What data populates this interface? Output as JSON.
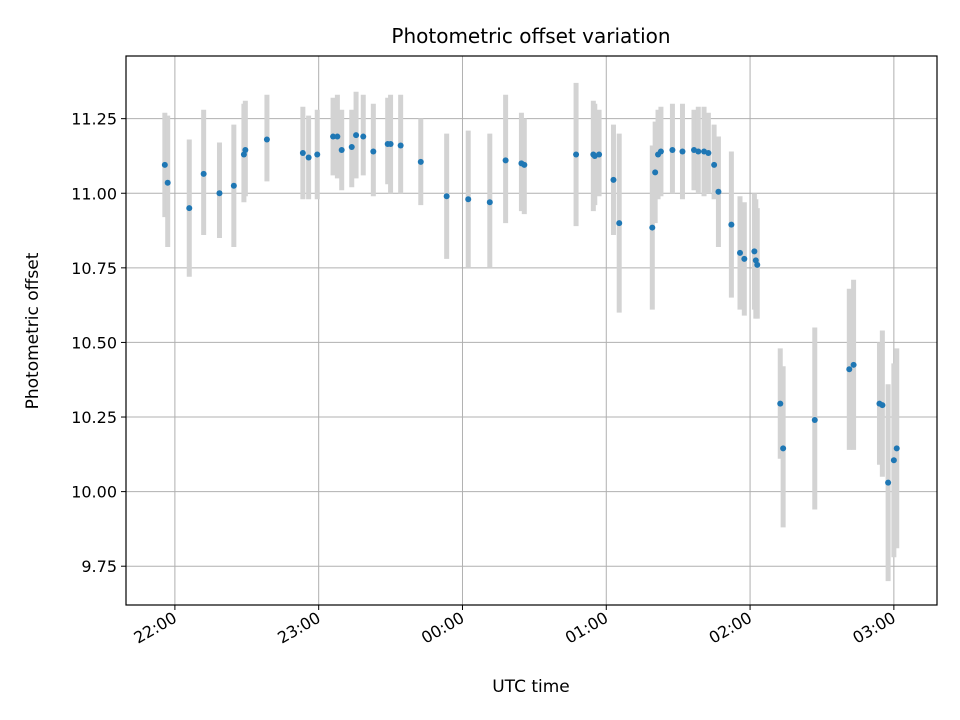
{
  "chart_data": {
    "type": "scatter",
    "title": "Photometric offset variation",
    "xlabel": "UTC time",
    "ylabel": "Photometric offset",
    "x_unit": "hours (UTC, relative to 00:00; negative = previous day)",
    "xlim": [
      -2.34,
      3.3
    ],
    "ylim": [
      9.62,
      11.46
    ],
    "x_ticks": [
      {
        "value": -2,
        "label": "22:00"
      },
      {
        "value": -1,
        "label": "23:00"
      },
      {
        "value": 0,
        "label": "00:00"
      },
      {
        "value": 1,
        "label": "01:00"
      },
      {
        "value": 2,
        "label": "02:00"
      },
      {
        "value": 3,
        "label": "03:00"
      }
    ],
    "y_ticks": [
      9.75,
      10.0,
      10.25,
      10.5,
      10.75,
      11.0,
      11.25
    ],
    "y_tick_labels": [
      "9.75",
      "10.00",
      "10.25",
      "10.50",
      "10.75",
      "11.00",
      "11.25"
    ],
    "grid": true,
    "colors": {
      "point": "#1f77b4",
      "errorbar": "#d3d3d3",
      "grid": "#b0b0b0"
    },
    "series": [
      {
        "points": [
          {
            "x": -2.07,
            "y": 11.095,
            "lo": 10.92,
            "hi": 11.27
          },
          {
            "x": -2.05,
            "y": 11.035,
            "lo": 10.82,
            "hi": 11.26
          },
          {
            "x": -1.9,
            "y": 10.95,
            "lo": 10.72,
            "hi": 11.18
          },
          {
            "x": -1.8,
            "y": 11.065,
            "lo": 10.86,
            "hi": 11.28
          },
          {
            "x": -1.69,
            "y": 11.0,
            "lo": 10.85,
            "hi": 11.17
          },
          {
            "x": -1.59,
            "y": 11.025,
            "lo": 10.82,
            "hi": 11.23
          },
          {
            "x": -1.52,
            "y": 11.13,
            "lo": 10.97,
            "hi": 11.3
          },
          {
            "x": -1.51,
            "y": 11.145,
            "lo": 10.99,
            "hi": 11.31
          },
          {
            "x": -1.36,
            "y": 11.18,
            "lo": 11.04,
            "hi": 11.33
          },
          {
            "x": -1.11,
            "y": 11.135,
            "lo": 10.98,
            "hi": 11.29
          },
          {
            "x": -1.07,
            "y": 11.12,
            "lo": 10.98,
            "hi": 11.26
          },
          {
            "x": -1.01,
            "y": 11.13,
            "lo": 10.98,
            "hi": 11.28
          },
          {
            "x": -0.9,
            "y": 11.19,
            "lo": 11.06,
            "hi": 11.32
          },
          {
            "x": -0.87,
            "y": 11.19,
            "lo": 11.05,
            "hi": 11.33
          },
          {
            "x": -0.84,
            "y": 11.145,
            "lo": 11.01,
            "hi": 11.28
          },
          {
            "x": -0.77,
            "y": 11.155,
            "lo": 11.02,
            "hi": 11.28
          },
          {
            "x": -0.74,
            "y": 11.195,
            "lo": 11.05,
            "hi": 11.34
          },
          {
            "x": -0.69,
            "y": 11.19,
            "lo": 11.06,
            "hi": 11.33
          },
          {
            "x": -0.62,
            "y": 11.14,
            "lo": 10.99,
            "hi": 11.3
          },
          {
            "x": -0.52,
            "y": 11.165,
            "lo": 11.03,
            "hi": 11.32
          },
          {
            "x": -0.5,
            "y": 11.165,
            "lo": 11.0,
            "hi": 11.33
          },
          {
            "x": -0.43,
            "y": 11.16,
            "lo": 11.0,
            "hi": 11.33
          },
          {
            "x": -0.29,
            "y": 11.105,
            "lo": 10.96,
            "hi": 11.25
          },
          {
            "x": -0.11,
            "y": 10.99,
            "lo": 10.78,
            "hi": 11.2
          },
          {
            "x": 0.04,
            "y": 10.98,
            "lo": 10.75,
            "hi": 11.21
          },
          {
            "x": 0.19,
            "y": 10.97,
            "lo": 10.75,
            "hi": 11.2
          },
          {
            "x": 0.3,
            "y": 11.11,
            "lo": 10.9,
            "hi": 11.33
          },
          {
            "x": 0.41,
            "y": 11.1,
            "lo": 10.94,
            "hi": 11.27
          },
          {
            "x": 0.43,
            "y": 11.095,
            "lo": 10.93,
            "hi": 11.25
          },
          {
            "x": 0.79,
            "y": 11.13,
            "lo": 10.89,
            "hi": 11.37
          },
          {
            "x": 0.91,
            "y": 11.13,
            "lo": 10.94,
            "hi": 11.31
          },
          {
            "x": 0.92,
            "y": 11.125,
            "lo": 10.96,
            "hi": 11.3
          },
          {
            "x": 0.95,
            "y": 11.13,
            "lo": 10.99,
            "hi": 11.28
          },
          {
            "x": 1.05,
            "y": 11.045,
            "lo": 10.86,
            "hi": 11.23
          },
          {
            "x": 1.09,
            "y": 10.9,
            "lo": 10.6,
            "hi": 11.2
          },
          {
            "x": 1.32,
            "y": 10.885,
            "lo": 10.61,
            "hi": 11.16
          },
          {
            "x": 1.34,
            "y": 11.07,
            "lo": 10.9,
            "hi": 11.24
          },
          {
            "x": 1.36,
            "y": 11.13,
            "lo": 10.98,
            "hi": 11.28
          },
          {
            "x": 1.38,
            "y": 11.14,
            "lo": 10.99,
            "hi": 11.29
          },
          {
            "x": 1.46,
            "y": 11.145,
            "lo": 11.0,
            "hi": 11.3
          },
          {
            "x": 1.53,
            "y": 11.14,
            "lo": 10.98,
            "hi": 11.3
          },
          {
            "x": 1.61,
            "y": 11.145,
            "lo": 11.01,
            "hi": 11.28
          },
          {
            "x": 1.64,
            "y": 11.14,
            "lo": 11.0,
            "hi": 11.29
          },
          {
            "x": 1.68,
            "y": 11.14,
            "lo": 10.99,
            "hi": 11.29
          },
          {
            "x": 1.71,
            "y": 11.135,
            "lo": 11.0,
            "hi": 11.27
          },
          {
            "x": 1.75,
            "y": 11.095,
            "lo": 10.98,
            "hi": 11.23
          },
          {
            "x": 1.78,
            "y": 11.005,
            "lo": 10.82,
            "hi": 11.19
          },
          {
            "x": 1.87,
            "y": 10.895,
            "lo": 10.65,
            "hi": 11.14
          },
          {
            "x": 1.93,
            "y": 10.8,
            "lo": 10.61,
            "hi": 10.99
          },
          {
            "x": 1.96,
            "y": 10.78,
            "lo": 10.59,
            "hi": 10.97
          },
          {
            "x": 2.03,
            "y": 10.805,
            "lo": 10.61,
            "hi": 11.0
          },
          {
            "x": 2.04,
            "y": 10.775,
            "lo": 10.58,
            "hi": 10.98
          },
          {
            "x": 2.05,
            "y": 10.76,
            "lo": 10.58,
            "hi": 10.95
          },
          {
            "x": 2.21,
            "y": 10.295,
            "lo": 10.11,
            "hi": 10.48
          },
          {
            "x": 2.23,
            "y": 10.145,
            "lo": 9.88,
            "hi": 10.42
          },
          {
            "x": 2.45,
            "y": 10.24,
            "lo": 9.94,
            "hi": 10.55
          },
          {
            "x": 2.69,
            "y": 10.41,
            "lo": 10.14,
            "hi": 10.68
          },
          {
            "x": 2.72,
            "y": 10.425,
            "lo": 10.14,
            "hi": 10.71
          },
          {
            "x": 2.9,
            "y": 10.295,
            "lo": 10.09,
            "hi": 10.5
          },
          {
            "x": 2.92,
            "y": 10.29,
            "lo": 10.05,
            "hi": 10.54
          },
          {
            "x": 2.96,
            "y": 10.03,
            "lo": 9.7,
            "hi": 10.36
          },
          {
            "x": 3.0,
            "y": 10.105,
            "lo": 9.78,
            "hi": 10.43
          },
          {
            "x": 3.02,
            "y": 10.145,
            "lo": 9.81,
            "hi": 10.48
          }
        ]
      }
    ]
  }
}
